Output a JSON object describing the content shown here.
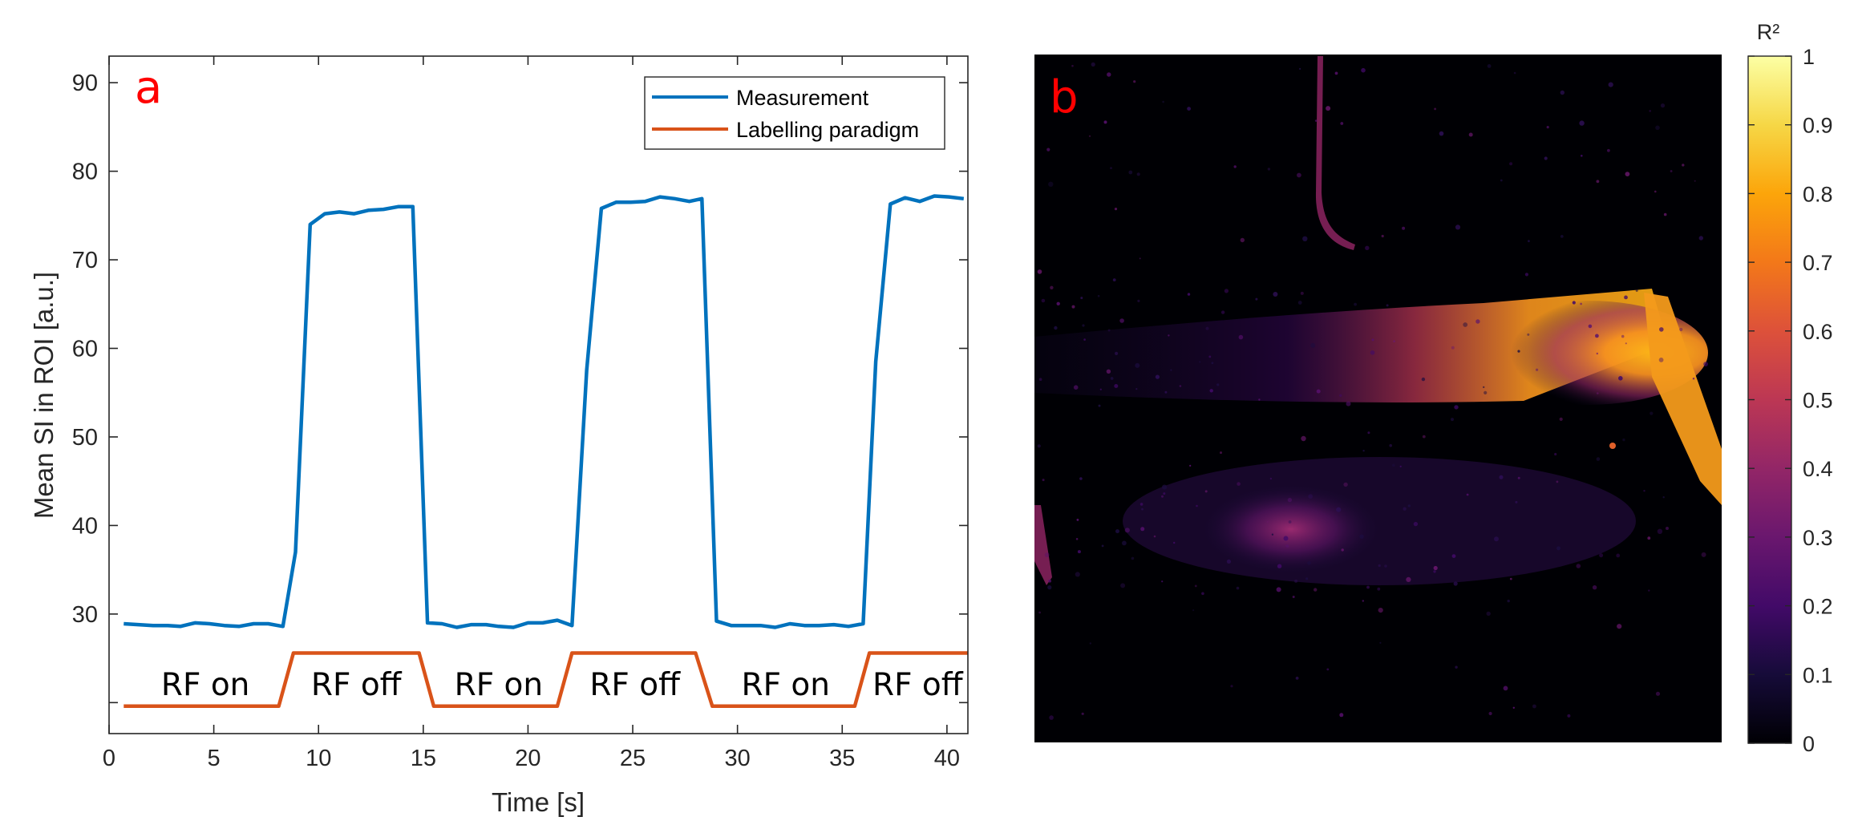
{
  "colors": {
    "measurement": "#0072BD",
    "labelling": "#D95319",
    "panel_label": "#FF0000",
    "axis": "#262626"
  },
  "chart_data": [
    {
      "type": "line",
      "panel_label": "a",
      "xlabel": "Time [s]",
      "ylabel": "Mean SI in ROI [a.u.]",
      "xlim": [
        0,
        41
      ],
      "ylim": [
        16.5,
        93
      ],
      "xticks": [
        0,
        5,
        10,
        15,
        20,
        25,
        30,
        35,
        40
      ],
      "yticks": [
        30,
        40,
        50,
        60,
        70,
        80,
        90
      ],
      "yticks_unlabeled": [
        20
      ],
      "grid": false,
      "legend_position": "top-right",
      "legend": [
        "Measurement",
        "Labelling paradigm"
      ],
      "series": [
        {
          "name": "Measurement",
          "color": "#0072BD",
          "x": [
            0.7,
            1.4,
            2.1,
            2.8,
            3.4,
            4.1,
            4.8,
            5.5,
            6.2,
            6.9,
            7.6,
            8.3,
            8.9,
            9.6,
            10.3,
            11.0,
            11.7,
            12.4,
            13.1,
            13.8,
            14.5,
            15.2,
            15.9,
            16.6,
            17.3,
            18.0,
            18.6,
            19.3,
            20.0,
            20.7,
            21.4,
            22.1,
            22.8,
            23.5,
            24.2,
            24.9,
            25.6,
            26.3,
            27.0,
            27.7,
            28.3,
            29.0,
            29.7,
            30.4,
            31.1,
            31.8,
            32.5,
            33.2,
            33.9,
            34.6,
            35.3,
            36.0,
            36.6,
            37.3,
            38.0,
            38.7,
            39.4,
            40.1,
            40.8
          ],
          "y": [
            28.9,
            28.8,
            28.7,
            28.7,
            28.6,
            29.0,
            28.9,
            28.7,
            28.6,
            28.9,
            28.9,
            28.6,
            37.0,
            74.0,
            75.2,
            75.4,
            75.2,
            75.6,
            75.7,
            76.0,
            76.0,
            29.0,
            28.9,
            28.5,
            28.8,
            28.8,
            28.6,
            28.5,
            29.0,
            29.0,
            29.3,
            28.7,
            57.5,
            75.8,
            76.5,
            76.5,
            76.6,
            77.1,
            76.9,
            76.6,
            76.9,
            29.2,
            28.7,
            28.7,
            28.7,
            28.5,
            28.9,
            28.7,
            28.7,
            28.8,
            28.6,
            28.9,
            58.5,
            76.3,
            77.0,
            76.6,
            77.2,
            77.1,
            76.9
          ]
        },
        {
          "name": "Labelling paradigm",
          "color": "#D95319",
          "x": [
            0.7,
            8.1,
            8.8,
            14.8,
            15.5,
            21.4,
            22.1,
            28.0,
            28.8,
            35.6,
            36.3,
            41.0
          ],
          "y": [
            19.6,
            19.6,
            25.6,
            25.6,
            19.6,
            19.6,
            25.6,
            25.6,
            19.6,
            19.6,
            25.6,
            25.6
          ]
        }
      ],
      "annotations": [
        {
          "text": "RF on",
          "x": 4.6
        },
        {
          "text": "RF off",
          "x": 11.8
        },
        {
          "text": "RF on",
          "x": 18.6
        },
        {
          "text": "RF off",
          "x": 25.1
        },
        {
          "text": "RF on",
          "x": 32.3
        },
        {
          "text": "RF off",
          "x": 38.6
        }
      ]
    },
    {
      "type": "heatmap",
      "panel_label": "b",
      "colormap": "inferno",
      "colorbar_title": "R²",
      "colorbar_range": [
        0,
        1
      ],
      "colorbar_ticks": [
        0,
        0.1,
        0.2,
        0.3,
        0.4,
        0.5,
        0.6,
        0.7,
        0.8,
        0.9,
        1
      ]
    }
  ],
  "text": {
    "panel_a_label": "a",
    "panel_b_label": "b",
    "xlabel": "Time [s]",
    "ylabel": "Mean SI in ROI [a.u.]",
    "legend_measurement": "Measurement",
    "legend_labelling": "Labelling paradigm",
    "colorbar_title": "R²"
  }
}
